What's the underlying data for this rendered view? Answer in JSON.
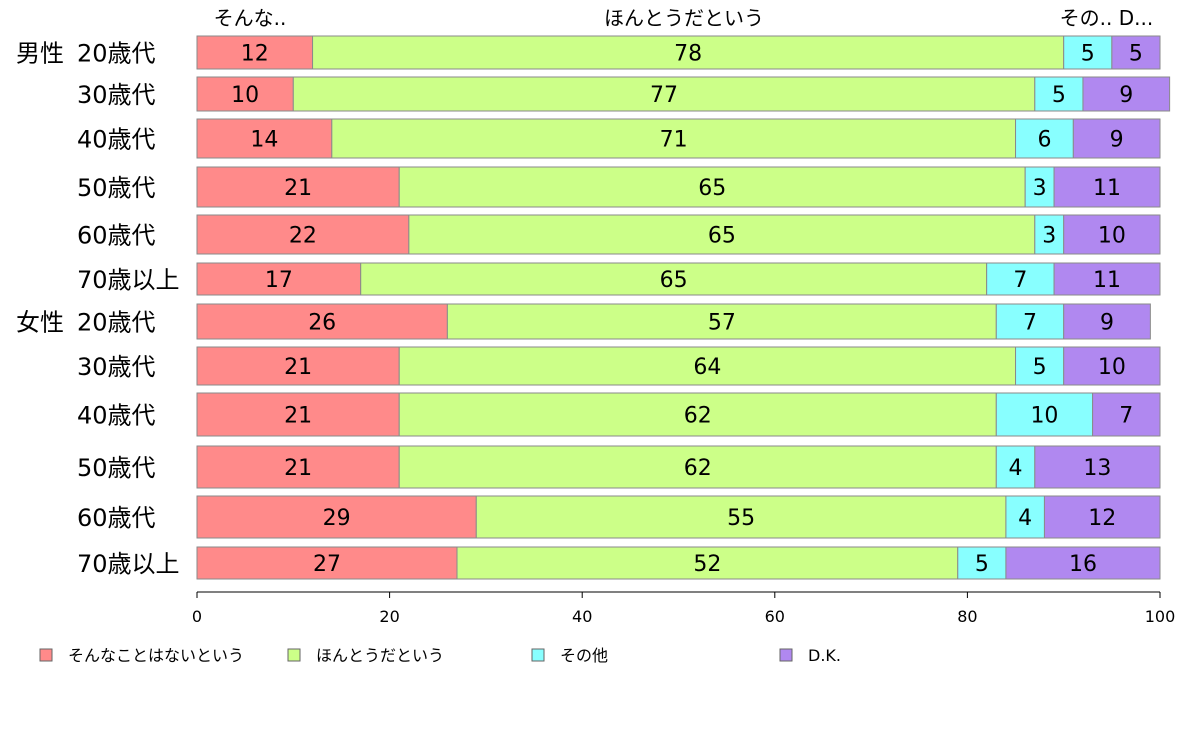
{
  "chart_data": {
    "type": "bar",
    "orientation": "horizontal",
    "stacked": true,
    "xlim": [
      0,
      100
    ],
    "xticks": [
      0,
      20,
      40,
      60,
      80,
      100
    ],
    "top_labels": [
      "そんな..",
      "ほんとうだという",
      "その..",
      "D..."
    ],
    "groups": [
      {
        "name": "男性",
        "rows": [
          "20歳代",
          "30歳代",
          "40歳代",
          "50歳代",
          "60歳代",
          "70歳以上"
        ]
      },
      {
        "name": "女性",
        "rows": [
          "20歳代",
          "30歳代",
          "40歳代",
          "50歳代",
          "60歳代",
          "70歳以上"
        ]
      }
    ],
    "series": [
      {
        "name": "そんなことはないという",
        "color": "#ff8a8a",
        "values": [
          12,
          10,
          14,
          21,
          22,
          17,
          26,
          21,
          21,
          21,
          29,
          27
        ]
      },
      {
        "name": "ほんとうだという",
        "color": "#ccff88",
        "values": [
          78,
          77,
          71,
          65,
          65,
          65,
          57,
          64,
          62,
          62,
          55,
          52
        ]
      },
      {
        "name": "その他",
        "color": "#88ffff",
        "values": [
          5,
          5,
          6,
          3,
          3,
          7,
          7,
          5,
          10,
          4,
          4,
          5
        ]
      },
      {
        "name": "D.K.",
        "color": "#b088f0",
        "values": [
          5,
          9,
          9,
          11,
          10,
          11,
          9,
          10,
          7,
          13,
          12,
          16
        ]
      }
    ],
    "grid": false,
    "legend": "bottom"
  }
}
